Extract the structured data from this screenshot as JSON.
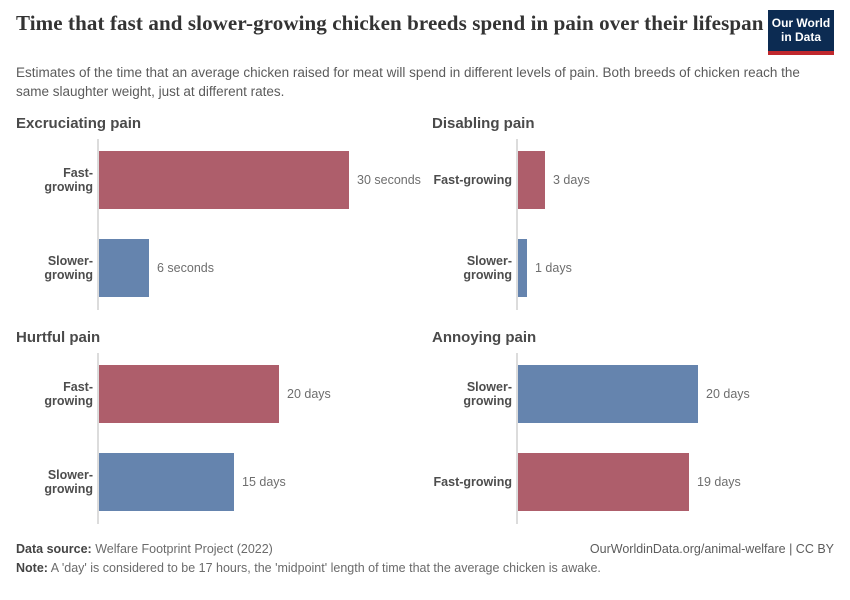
{
  "header": {
    "title": "Time that fast and slower-growing chicken breeds spend in pain over their lifespan",
    "subtitle": "Estimates of the time that an average chicken raised for meat will spend in different levels of pain. Both breeds of chicken reach the same slaughter weight, just at different rates.",
    "logo_line1": "Our World",
    "logo_line2": "in Data"
  },
  "colors": {
    "fast_growing_bar": "#ae5e6b",
    "slower_growing_bar": "#6584ae",
    "logo_navy": "#0c2b52",
    "logo_red": "#c0282d",
    "axis_line": "#dcdcdc"
  },
  "chart_data": [
    {
      "type": "bar",
      "orientation": "horizontal",
      "title": "Excruciating pain",
      "unit": "seconds",
      "categories": [
        "Fast-growing",
        "Slower-growing"
      ],
      "values": [
        30,
        6
      ],
      "value_labels": [
        "30 seconds",
        "6 seconds"
      ],
      "series_colors": [
        "#ae5e6b",
        "#6584ae"
      ],
      "xlim": [
        0,
        30
      ]
    },
    {
      "type": "bar",
      "orientation": "horizontal",
      "title": "Disabling pain",
      "unit": "days",
      "categories": [
        "Fast-growing",
        "Slower-growing"
      ],
      "values": [
        3,
        1
      ],
      "value_labels": [
        "3 days",
        "1 days"
      ],
      "series_colors": [
        "#ae5e6b",
        "#6584ae"
      ],
      "xlim": [
        0,
        20
      ]
    },
    {
      "type": "bar",
      "orientation": "horizontal",
      "title": "Hurtful pain",
      "unit": "days",
      "categories": [
        "Fast-growing",
        "Slower-growing"
      ],
      "values": [
        20,
        15
      ],
      "value_labels": [
        "20 days",
        "15 days"
      ],
      "series_colors": [
        "#ae5e6b",
        "#6584ae"
      ],
      "xlim": [
        0,
        20
      ]
    },
    {
      "type": "bar",
      "orientation": "horizontal",
      "title": "Annoying pain",
      "unit": "days",
      "categories": [
        "Slower-growing",
        "Fast-growing"
      ],
      "values": [
        20,
        19
      ],
      "value_labels": [
        "20 days",
        "19 days"
      ],
      "series_colors": [
        "#6584ae",
        "#ae5e6b"
      ],
      "xlim": [
        0,
        20
      ]
    }
  ],
  "footer": {
    "data_source_label": "Data source:",
    "data_source_value": " Welfare Footprint Project (2022)",
    "link": "OurWorldinData.org/animal-welfare | CC BY",
    "note_label": "Note:",
    "note_text": " A 'day' is considered to be 17 hours, the 'midpoint' length of time that the average chicken is awake."
  }
}
